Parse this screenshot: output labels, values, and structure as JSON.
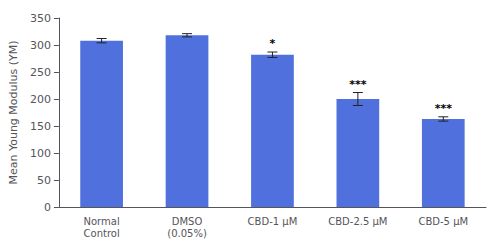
{
  "chart_data": {
    "type": "bar",
    "categories": [
      "Normal\nControl",
      "DMSO\n(0.05%)",
      "CBD-1 μM",
      "CBD-2.5 μM",
      "CBD-5 μM"
    ],
    "values": [
      308,
      318,
      282,
      200,
      163
    ],
    "errors": [
      4,
      3,
      5,
      12,
      4
    ],
    "annotations": [
      null,
      null,
      "*",
      "***",
      "***"
    ],
    "ylabel": "Mean Young Modulus (YM)",
    "ylim": [
      0,
      350
    ],
    "yticks": [
      0,
      50,
      100,
      150,
      200,
      250,
      300,
      350
    ],
    "grid": false
  }
}
